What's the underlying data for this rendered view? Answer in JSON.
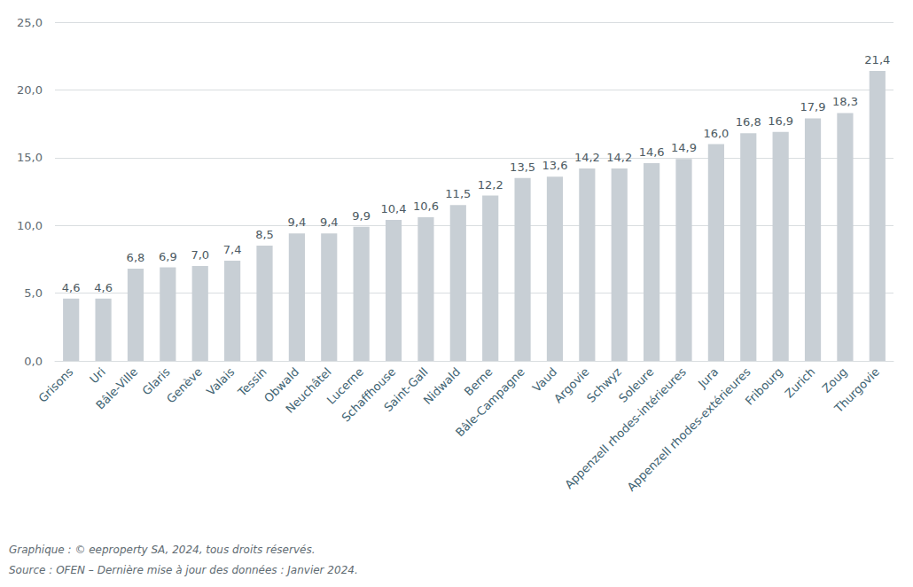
{
  "chart_data": {
    "type": "bar",
    "categories": [
      "Grisons",
      "Uri",
      "Bâle-Ville",
      "Glaris",
      "Genève",
      "Valais",
      "Tessin",
      "Obwald",
      "Neuchâtel",
      "Lucerne",
      "Schaffhouse",
      "Saint-Gall",
      "Nidwald",
      "Berne",
      "Bâle-Campagne",
      "Vaud",
      "Argovie",
      "Schwyz",
      "Soleure",
      "Appenzell rhodes-intérieures",
      "Jura",
      "Appenzell rhodes-extérieures",
      "Fribourg",
      "Zurich",
      "Zoug",
      "Thurgovie"
    ],
    "values": [
      4.6,
      4.6,
      6.8,
      6.9,
      7.0,
      7.4,
      8.5,
      9.4,
      9.4,
      9.9,
      10.4,
      10.6,
      11.5,
      12.2,
      13.5,
      13.6,
      14.2,
      14.2,
      14.6,
      14.9,
      16.0,
      16.8,
      16.9,
      17.9,
      18.3,
      21.4
    ],
    "value_labels": [
      "4,6",
      "4,6",
      "6,8",
      "6,9",
      "7,0",
      "7,4",
      "8,5",
      "9,4",
      "9,4",
      "9,9",
      "10,4",
      "10,6",
      "11,5",
      "12,2",
      "13,5",
      "13,6",
      "14,2",
      "14,2",
      "14,6",
      "14,9",
      "16,0",
      "16,8",
      "16,9",
      "17,9",
      "18,3",
      "21,4"
    ],
    "color": "#c8cfd5",
    "ylim": [
      0,
      25
    ],
    "yticks": [
      {
        "value": 0,
        "label": "0,0"
      },
      {
        "value": 5,
        "label": "5,0"
      },
      {
        "value": 10,
        "label": "10,0"
      },
      {
        "value": 15,
        "label": "15,0"
      },
      {
        "value": 20,
        "label": "20,0"
      },
      {
        "value": 25,
        "label": "25,0"
      }
    ],
    "grid": true,
    "data_labels": true,
    "annotations": [
      "Graphique : © eeproperty SA, 2024, tous droits réservés.",
      "Source : OFEN – Dernière mise à jour des données : Janvier 2024."
    ]
  }
}
